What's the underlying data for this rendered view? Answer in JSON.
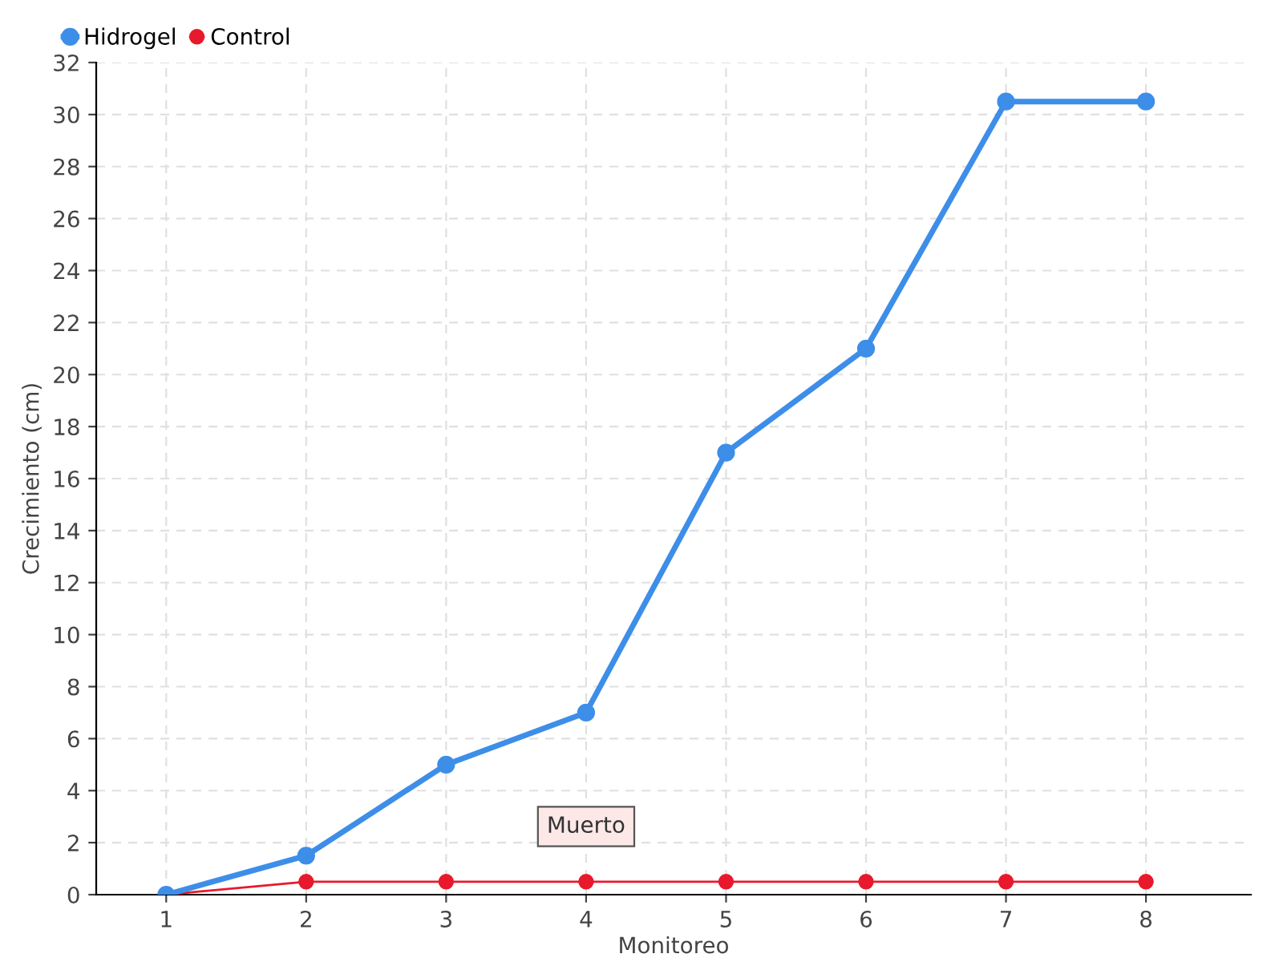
{
  "chart_data": {
    "type": "line",
    "xlabel": "Monitoreo",
    "ylabel": "Crecimiento (cm)",
    "categories": [
      "1",
      "2",
      "3",
      "4",
      "5",
      "6",
      "7",
      "8"
    ],
    "series": [
      {
        "name": "Hidrogel",
        "color": "#3d8ee8",
        "values": [
          0,
          1.5,
          5,
          7,
          17,
          21,
          30.5,
          30.5
        ]
      },
      {
        "name": "Control",
        "color": "#e8192c",
        "values": [
          0,
          0.5,
          0.5,
          0.5,
          0.5,
          0.5,
          0.5,
          0.5
        ]
      }
    ],
    "ylim": [
      0,
      32
    ],
    "yticks": [
      0,
      2,
      4,
      6,
      8,
      10,
      12,
      14,
      16,
      18,
      20,
      22,
      24,
      26,
      28,
      30,
      32
    ],
    "grid": true,
    "legend": "top left",
    "marker": "circle",
    "line_style": "solid",
    "annotations": [
      {
        "text": "Muerto",
        "x": "4",
        "y": 0.5
      }
    ]
  }
}
